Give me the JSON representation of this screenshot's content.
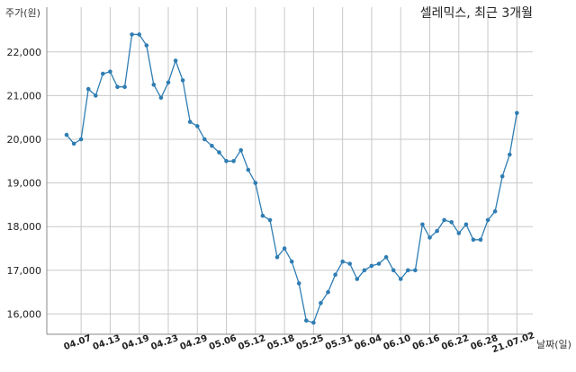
{
  "chart_data": {
    "type": "line",
    "title": "셀레믹스, 최근 3개월",
    "ylabel": "주가(원)",
    "xlabel": "날짜(일)",
    "ylim": [
      15500,
      22700
    ],
    "yticks": [
      16000,
      17000,
      18000,
      19000,
      20000,
      21000,
      22000
    ],
    "ytick_labels": [
      "16,000",
      "17,000",
      "18,000",
      "19,000",
      "20,000",
      "21,000",
      "22,000"
    ],
    "grid": true,
    "xtick_labels": [
      "04.07",
      "04.13",
      "04.19",
      "04.23",
      "04.29",
      "05.06",
      "05.12",
      "05.18",
      "05.25",
      "05.31",
      "06.04",
      "06.10",
      "06.16",
      "06.22",
      "06.28",
      "21.07.02"
    ],
    "xtick_index": [
      2,
      6,
      10,
      14,
      18,
      22,
      26,
      30,
      34,
      38,
      42,
      46,
      50,
      54,
      58,
      62
    ],
    "series": [
      {
        "values": [
          20100,
          19900,
          20000,
          21150,
          21000,
          21500,
          21550,
          21200,
          21200,
          22400,
          22400,
          22150,
          21250,
          20950,
          21300,
          21800,
          21350,
          20400,
          20300,
          20000,
          19850,
          19700,
          19500,
          19500,
          19750,
          19300,
          19000,
          18250,
          18150,
          17300,
          17500,
          17200,
          16700,
          15850,
          15800,
          16250,
          16500,
          16900,
          17200,
          17150,
          16800,
          17000,
          17100,
          17150,
          17300,
          17000,
          16800,
          17000,
          17000,
          18050,
          17750,
          17900,
          18150,
          18100,
          17850,
          18050,
          17700,
          17700,
          18150,
          18350,
          19150,
          19650,
          20600
        ]
      }
    ]
  }
}
